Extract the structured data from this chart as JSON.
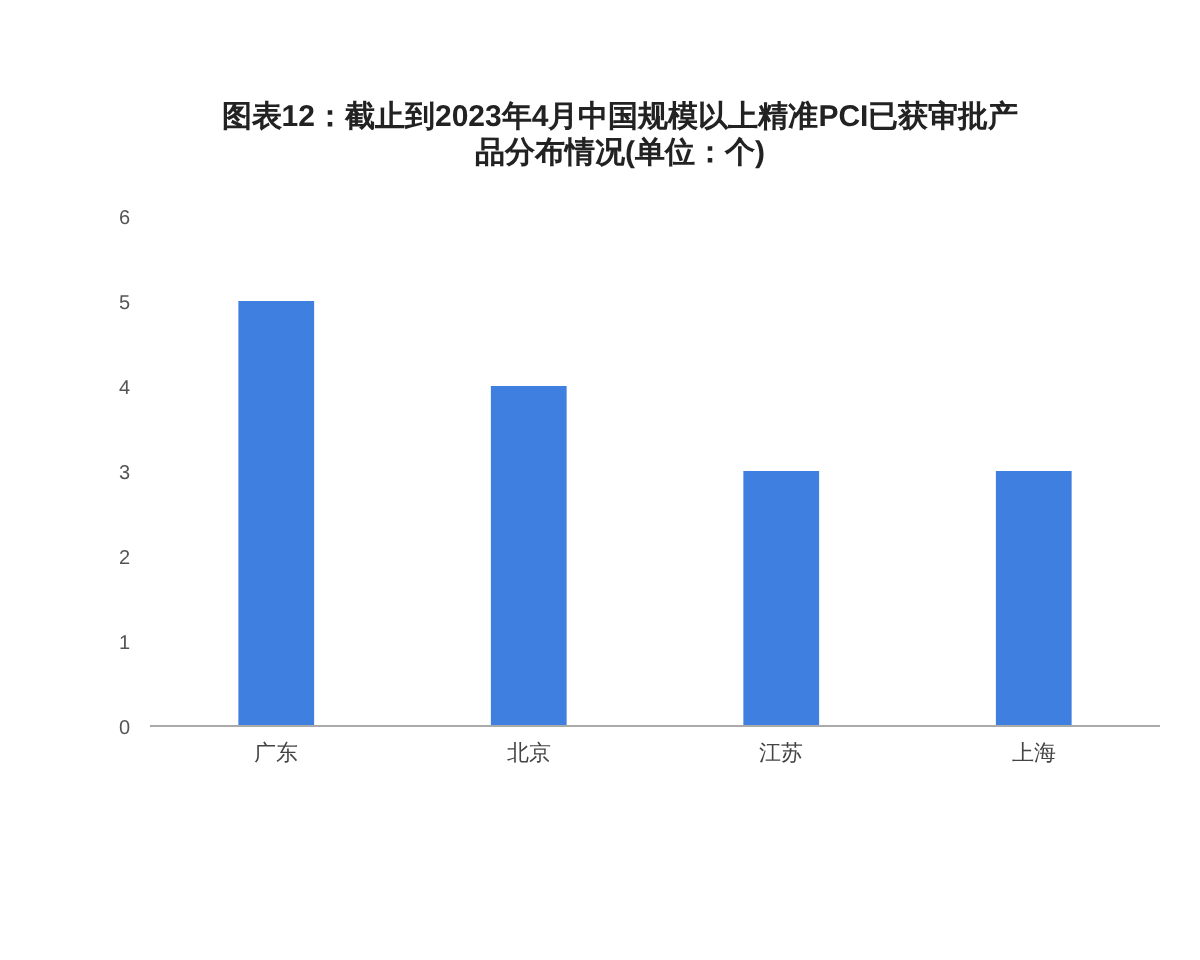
{
  "chart_data": {
    "type": "bar",
    "title": "图表12：截止到2023年4月中国规模以上精准PCI已获审批产品分布情况(单位：个)",
    "categories": [
      "广东",
      "北京",
      "江苏",
      "上海"
    ],
    "values": [
      5,
      4,
      3,
      3
    ],
    "color": "#3f7fe0",
    "ylim": [
      0,
      6
    ],
    "yticks": [
      0,
      1,
      2,
      3,
      4,
      5,
      6
    ],
    "grid": false
  }
}
